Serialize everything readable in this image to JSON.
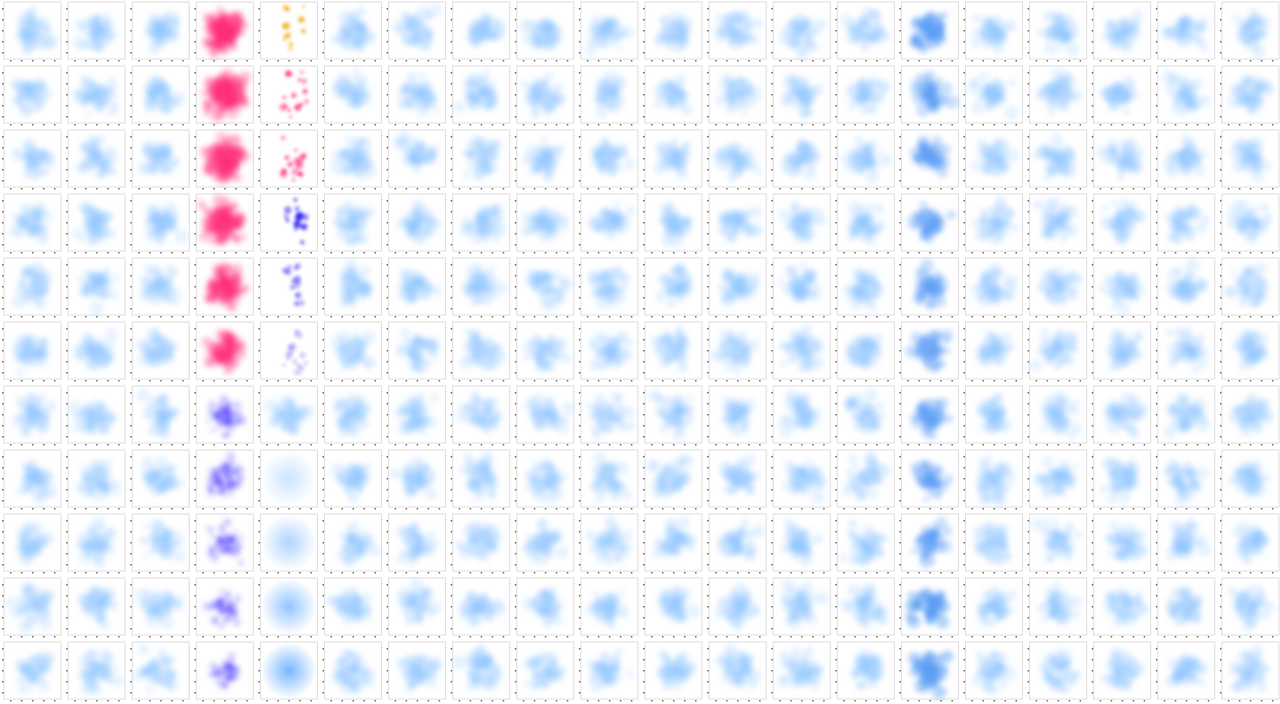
{
  "palette": {
    "base": "#8cc2ff",
    "pink": "#ff2d7a",
    "purple": "#4a3cff",
    "orange": "#f0a500",
    "blue": "#2a1cf0",
    "haze": "#6fb2ff",
    "accent": "#5c9ef5"
  }
}
